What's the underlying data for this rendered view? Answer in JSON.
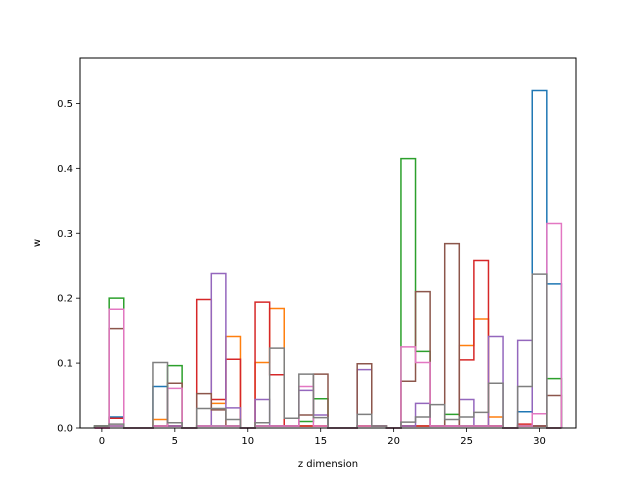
{
  "chart_data": {
    "type": "step-histogram",
    "title": "",
    "xlabel": "z dimension",
    "ylabel": "w",
    "xlim": [
      -1.5,
      32.5
    ],
    "ylim": [
      0,
      0.57
    ],
    "xticks": [
      0,
      5,
      10,
      15,
      20,
      25,
      30
    ],
    "xtick_labels": [
      "0",
      "5",
      "10",
      "15",
      "20",
      "25",
      "30"
    ],
    "yticks": [
      0.0,
      0.1,
      0.2,
      0.3,
      0.4,
      0.5
    ],
    "ytick_labels": [
      "0.0",
      "0.1",
      "0.2",
      "0.3",
      "0.4",
      "0.5"
    ],
    "bin_start": -0.5,
    "bin_width": 1,
    "series": [
      {
        "color": "#1f77b4",
        "values": [
          0.003,
          0.017,
          0,
          0,
          0.064,
          0.003,
          0,
          0.003,
          0.003,
          0.003,
          0,
          0.003,
          0.003,
          0.003,
          0.003,
          0.003,
          0,
          0,
          0.003,
          0.003,
          0,
          0.003,
          0.003,
          0.003,
          0.003,
          0.003,
          0.003,
          0.003,
          0,
          0.025,
          0.52,
          0.222
        ]
      },
      {
        "color": "#ff7f0e",
        "values": [
          0,
          0.003,
          0,
          0,
          0.013,
          0.003,
          0,
          0.003,
          0.038,
          0.141,
          0,
          0.101,
          0.184,
          0.003,
          0.003,
          0.003,
          0,
          0,
          0.003,
          0.003,
          0,
          0.003,
          0.003,
          0.003,
          0.003,
          0.127,
          0.168,
          0.017,
          0,
          0.003,
          0.003,
          0
        ]
      },
      {
        "color": "#2ca02c",
        "values": [
          0.003,
          0.2,
          0,
          0,
          0.003,
          0.096,
          0,
          0.003,
          0.003,
          0.003,
          0,
          0.003,
          0.003,
          0.003,
          0.01,
          0.045,
          0,
          0,
          0.003,
          0.003,
          0,
          0.415,
          0.118,
          0.003,
          0.021,
          0.003,
          0.003,
          0.003,
          0,
          0.003,
          0.003,
          0.076
        ]
      },
      {
        "color": "#d62728",
        "values": [
          0,
          0.015,
          0,
          0,
          0.003,
          0.003,
          0,
          0.198,
          0.044,
          0.106,
          0,
          0.194,
          0.082,
          0.003,
          0.003,
          0.003,
          0,
          0,
          0.003,
          0.003,
          0,
          0.003,
          0.003,
          0.003,
          0.003,
          0.105,
          0.258,
          0.003,
          0,
          0.006,
          0.003,
          0
        ]
      },
      {
        "color": "#9467bd",
        "values": [
          0,
          0.003,
          0,
          0,
          0.003,
          0.003,
          0,
          0.003,
          0.238,
          0.031,
          0,
          0.044,
          0.003,
          0.003,
          0.058,
          0.02,
          0,
          0,
          0.09,
          0.003,
          0,
          0.003,
          0.038,
          0.003,
          0.003,
          0.044,
          0.003,
          0.141,
          0,
          0.135,
          0.003,
          0
        ]
      },
      {
        "color": "#8c564b",
        "values": [
          0.003,
          0.153,
          0,
          0,
          0.003,
          0.069,
          0,
          0.053,
          0.028,
          0.003,
          0,
          0.003,
          0.003,
          0.003,
          0.02,
          0.083,
          0,
          0,
          0.099,
          0.003,
          0,
          0.072,
          0.21,
          0.003,
          0.284,
          0.003,
          0.003,
          0.003,
          0,
          0.003,
          0.003,
          0.05
        ]
      },
      {
        "color": "#e377c2",
        "values": [
          0,
          0.183,
          0,
          0,
          0.003,
          0.061,
          0,
          0.003,
          0.003,
          0.003,
          0,
          0.003,
          0.003,
          0.003,
          0.064,
          0.003,
          0,
          0,
          0.003,
          0.003,
          0,
          0.125,
          0.101,
          0.003,
          0.003,
          0.003,
          0.003,
          0.003,
          0,
          0.003,
          0.022,
          0.315
        ]
      },
      {
        "color": "#7f7f7f",
        "values": [
          0.003,
          0.006,
          0,
          0,
          0.101,
          0.008,
          0,
          0.03,
          0.03,
          0.013,
          0,
          0.008,
          0.123,
          0.015,
          0.083,
          0.016,
          0,
          0,
          0.021,
          0.003,
          0,
          0.009,
          0.017,
          0.036,
          0.013,
          0.017,
          0.024,
          0.069,
          0,
          0.064,
          0.237,
          0
        ]
      }
    ]
  }
}
